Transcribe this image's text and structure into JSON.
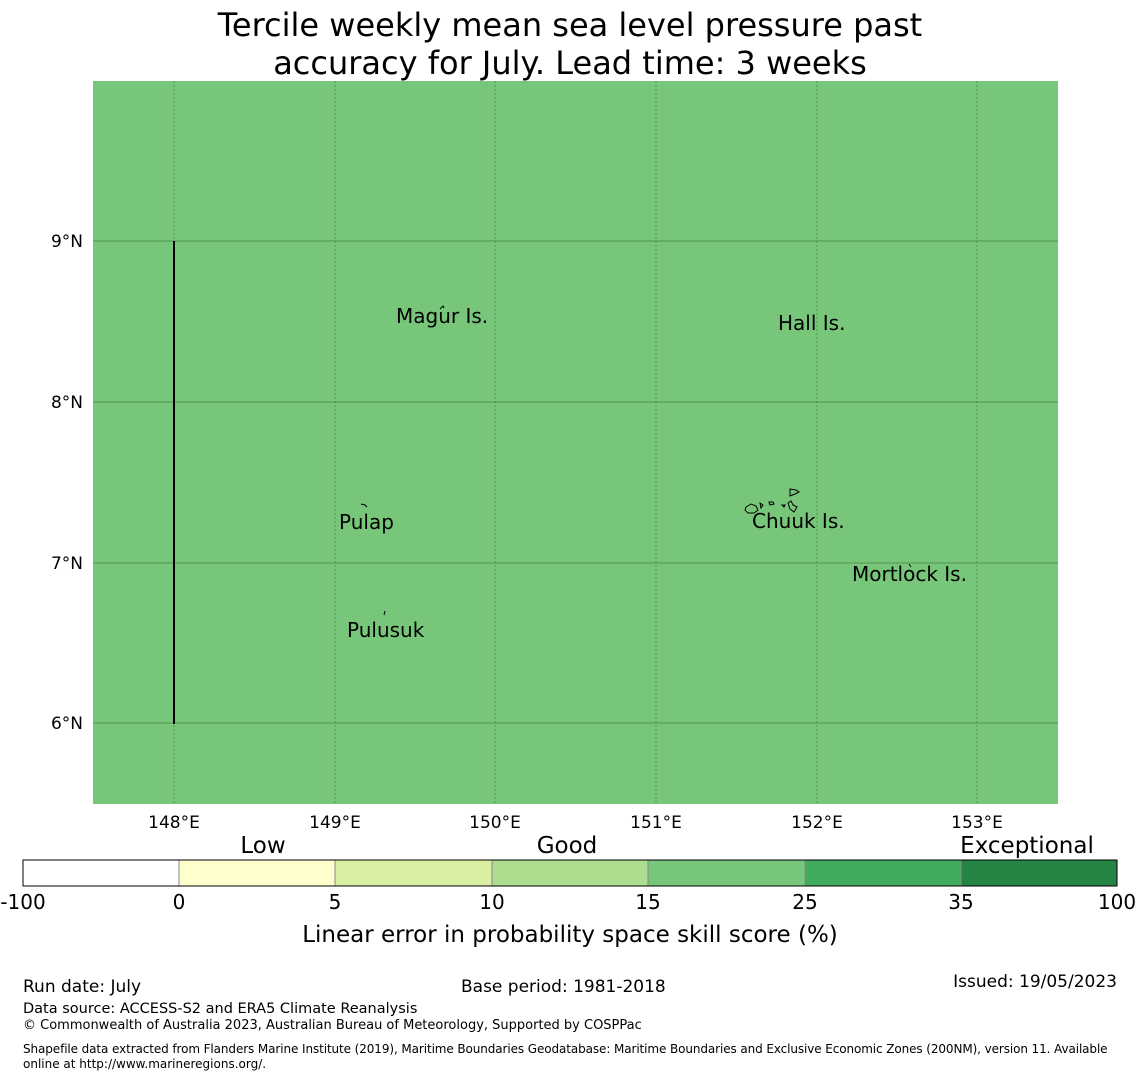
{
  "title": {
    "line1": "Tercile weekly mean sea level pressure past",
    "line2": "accuracy for July. Lead time: 3 weeks"
  },
  "map": {
    "background_color": "#78c679",
    "lon_ticks": [
      "148°E",
      "149°E",
      "150°E",
      "151°E",
      "152°E",
      "153°E"
    ],
    "lat_ticks": [
      "9°N",
      "8°N",
      "7°N",
      "6°N"
    ],
    "place_labels": [
      {
        "name": "Magur Is."
      },
      {
        "name": "Hall Is."
      },
      {
        "name": "Pulap"
      },
      {
        "name": "Chuuk Is."
      },
      {
        "name": "Mortlock Is."
      },
      {
        "name": "Pulusuk"
      }
    ]
  },
  "legend": {
    "category_labels": [
      "Low",
      "Good",
      "Exceptional"
    ],
    "tick_labels": [
      "-100",
      "0",
      "5",
      "10",
      "15",
      "25",
      "35",
      "100"
    ],
    "colors": [
      "#ffffff",
      "#ffffcc",
      "#d9f0a3",
      "#addd8e",
      "#78c679",
      "#41ab5d",
      "#238443"
    ],
    "title": "Linear error in probability space skill score (%)"
  },
  "footer": {
    "run_date": "Run date: July",
    "base_period": "Base period: 1981-2018",
    "issued": "Issued: 19/05/2023",
    "data_source": "Data source: ACCESS-S2 and ERA5 Climate Reanalysis",
    "copyright": "© Commonwealth of Australia 2023, Australian Bureau of Meteorology, Supported by COSPPac",
    "shapefile_line1": "Shapefile data extracted from Flanders Marine Institute (2019), Maritime Boundaries Geodatabase: Maritime Boundaries and Exclusive Economic Zones (200NM), version 11. Available",
    "shapefile_line2": "online at http://www.marineregions.org/."
  }
}
